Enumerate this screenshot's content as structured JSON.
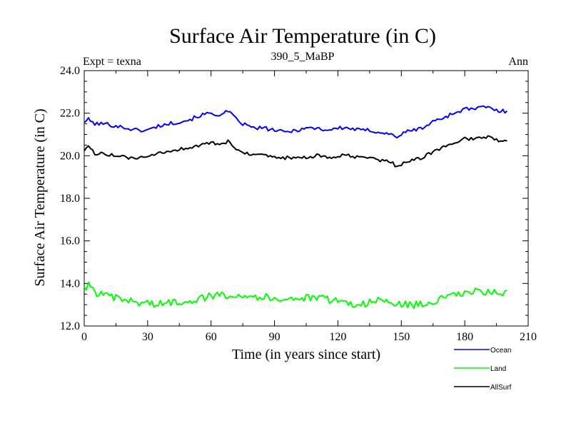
{
  "chart_data": {
    "type": "line",
    "title": "Surface Air Temperature (in C)",
    "subtitle": "390_5_MaBP",
    "left_label": "Expt = texna",
    "right_label": "Ann",
    "xlabel": "Time (in years since start)",
    "ylabel": "Surface Air Temperature (in C)",
    "xlim": [
      0,
      210
    ],
    "ylim": [
      12.0,
      24.0
    ],
    "x_ticks": [
      0,
      30,
      60,
      90,
      120,
      150,
      180,
      210
    ],
    "x_tick_labels": [
      "0",
      "30",
      "60",
      "90",
      "120",
      "150",
      "180",
      "210"
    ],
    "y_ticks": [
      12,
      14,
      16,
      18,
      20,
      22,
      24
    ],
    "y_tick_labels": [
      "12.0",
      "14.0",
      "16.0",
      "18.0",
      "20.0",
      "22.0",
      "24.0"
    ],
    "grid": false,
    "legend_position": "bottom-right, outside plot",
    "series": [
      {
        "name": "Ocean",
        "color": "#0000ff",
        "anchor_x": [
          0,
          2,
          5,
          10,
          15,
          20,
          25,
          30,
          35,
          40,
          45,
          50,
          55,
          60,
          65,
          68,
          72,
          75,
          80,
          85,
          90,
          95,
          100,
          105,
          110,
          115,
          120,
          125,
          130,
          135,
          140,
          145,
          148,
          152,
          155,
          160,
          165,
          170,
          175,
          180,
          185,
          190,
          193,
          196,
          200
        ],
        "anchor_y": [
          21.6,
          21.7,
          21.5,
          21.5,
          21.4,
          21.3,
          21.2,
          21.2,
          21.4,
          21.5,
          21.6,
          21.7,
          21.9,
          22.0,
          21.9,
          22.1,
          21.7,
          21.5,
          21.3,
          21.3,
          21.2,
          21.1,
          21.2,
          21.3,
          21.3,
          21.2,
          21.3,
          21.3,
          21.2,
          21.2,
          21.1,
          21.0,
          20.9,
          21.1,
          21.2,
          21.3,
          21.6,
          21.8,
          22.0,
          22.2,
          22.2,
          22.3,
          22.2,
          22.1,
          22.1
        ]
      },
      {
        "name": "Land",
        "color": "#00ff00",
        "anchor_x": [
          0,
          2,
          5,
          10,
          15,
          20,
          25,
          30,
          35,
          40,
          50,
          60,
          70,
          80,
          90,
          100,
          110,
          120,
          128,
          135,
          140,
          150,
          160,
          170,
          178,
          185,
          195,
          200
        ],
        "anchor_y": [
          13.8,
          13.9,
          13.6,
          13.4,
          13.3,
          13.2,
          13.1,
          13.1,
          13.0,
          13.1,
          13.2,
          13.4,
          13.5,
          13.4,
          13.3,
          13.3,
          13.3,
          13.2,
          13.0,
          13.1,
          13.2,
          13.0,
          13.0,
          13.3,
          13.5,
          13.6,
          13.6,
          13.5
        ]
      },
      {
        "name": "AllSurf",
        "color": "#000000",
        "anchor_x": [
          0,
          2,
          5,
          10,
          15,
          20,
          25,
          30,
          35,
          40,
          45,
          50,
          55,
          60,
          65,
          68,
          72,
          75,
          80,
          85,
          90,
          95,
          100,
          105,
          110,
          115,
          120,
          125,
          130,
          135,
          140,
          145,
          148,
          152,
          155,
          160,
          165,
          170,
          175,
          180,
          185,
          190,
          193,
          196,
          200
        ],
        "anchor_y": [
          20.3,
          20.4,
          20.1,
          20.1,
          20.0,
          19.9,
          19.9,
          19.9,
          20.1,
          20.2,
          20.3,
          20.4,
          20.5,
          20.6,
          20.5,
          20.7,
          20.3,
          20.2,
          20.0,
          20.0,
          19.9,
          19.9,
          19.9,
          19.9,
          20.0,
          19.9,
          20.0,
          20.0,
          19.9,
          19.9,
          19.8,
          19.7,
          19.5,
          19.7,
          19.8,
          19.9,
          20.2,
          20.4,
          20.6,
          20.8,
          20.8,
          20.9,
          20.8,
          20.7,
          20.7
        ]
      }
    ]
  }
}
